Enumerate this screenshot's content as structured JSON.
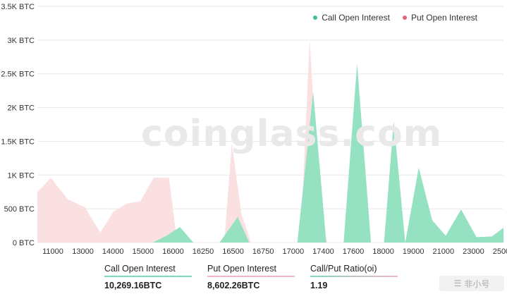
{
  "chart_data": {
    "type": "area",
    "watermark": "coinglass.com",
    "y_ticks": [
      "0 BTC",
      "500 BTC",
      "1K BTC",
      "1.5K BTC",
      "2K BTC",
      "2.5K BTC",
      "3K BTC",
      "3.5K BTC"
    ],
    "ylim": [
      0,
      3500
    ],
    "x_ticks": [
      "11000",
      "13000",
      "14000",
      "15000",
      "16000",
      "16250",
      "16500",
      "16750",
      "17000",
      "17400",
      "17600",
      "18000",
      "19000",
      "21000",
      "23000",
      "25000"
    ],
    "legend_position": "top-right",
    "series": [
      {
        "name": "Call Open Interest",
        "color": "#7fdcb5",
        "values": [
          0,
          0,
          0,
          0,
          0,
          0,
          0,
          0,
          0,
          0,
          0,
          0,
          0,
          0,
          0,
          0,
          0,
          0,
          0,
          0,
          0,
          0,
          0,
          0,
          0,
          0,
          0,
          0,
          0,
          0,
          30,
          50,
          0,
          0,
          0,
          0,
          0,
          0,
          0,
          0,
          0,
          0,
          0,
          0,
          0,
          0,
          0,
          0,
          0,
          0,
          0,
          0,
          0,
          0,
          0,
          0,
          0,
          0,
          0,
          0,
          0,
          0,
          0,
          0,
          0,
          0,
          0,
          0,
          0,
          0,
          0,
          0,
          100,
          230,
          0,
          0,
          0,
          0,
          0,
          0,
          0,
          0,
          0,
          0,
          0,
          0,
          0,
          0,
          0,
          0,
          0,
          0,
          0,
          0,
          0,
          380,
          0,
          0,
          0,
          0,
          0,
          0,
          0,
          0,
          0,
          0,
          0,
          0,
          0,
          0,
          0,
          0,
          0,
          0,
          0,
          0,
          0,
          2230,
          0,
          0,
          0,
          0,
          0,
          0,
          0,
          0,
          0,
          0,
          0,
          0,
          0,
          0,
          0,
          0,
          2650,
          0,
          0,
          0,
          0,
          0,
          0,
          0,
          0,
          0,
          0,
          0,
          0,
          0,
          0,
          0,
          1800,
          0,
          0,
          0,
          0,
          0,
          0,
          0,
          0,
          0,
          0,
          0,
          0,
          0,
          0,
          1110,
          0,
          0,
          0,
          0,
          330,
          0,
          0,
          100,
          0,
          0,
          490,
          0,
          0,
          0,
          100,
          80,
          0,
          0,
          220
        ]
      },
      {
        "name": "Put Open Interest",
        "color": "#fbe0e2",
        "values": [
          740,
          960,
          0,
          0,
          0,
          0,
          0,
          0,
          0,
          0,
          0,
          0,
          0,
          0,
          0,
          0,
          0,
          0,
          0,
          0,
          0,
          0,
          0,
          0,
          0,
          0,
          0,
          0,
          0,
          0,
          0,
          0,
          0,
          0,
          0,
          0,
          0,
          0,
          0,
          0,
          0,
          0,
          0,
          0,
          0,
          0,
          0,
          0,
          0,
          0,
          0,
          0,
          0,
          0,
          0,
          0,
          0,
          0,
          0,
          0,
          0,
          0,
          0,
          0,
          0,
          0,
          0,
          0,
          0,
          0,
          0,
          0,
          0,
          0,
          0,
          0,
          0,
          0,
          0,
          0,
          0,
          0,
          0,
          0,
          0,
          0,
          0,
          0,
          0,
          0,
          0,
          0,
          0,
          0,
          0,
          0,
          0,
          0,
          0,
          0,
          0,
          0,
          0,
          0,
          0,
          0,
          0,
          0,
          0,
          0,
          0,
          0,
          0,
          0,
          0,
          0,
          0,
          0,
          0,
          0,
          0,
          0,
          0,
          0,
          0,
          0,
          0,
          0,
          0,
          0,
          0,
          0,
          0,
          0,
          0,
          0,
          0,
          0,
          0,
          0,
          0,
          0,
          0,
          0,
          0,
          0,
          0,
          0,
          0,
          0,
          0,
          0,
          0,
          0,
          0,
          0,
          0,
          0,
          0,
          0,
          0,
          0,
          0,
          0,
          0,
          0,
          0,
          0,
          0,
          0,
          0,
          0,
          0,
          0,
          0,
          0,
          0,
          0,
          0,
          0,
          0,
          0,
          0,
          0,
          0,
          0,
          0,
          0,
          0,
          0,
          0,
          0,
          0,
          0,
          0,
          0,
          0,
          0,
          0,
          0
        ]
      }
    ]
  },
  "legend": {
    "call_label": "Call Open Interest",
    "put_label": "Put  Open Interest",
    "call_color": "#3fc28a",
    "put_color": "#e8607a"
  },
  "stats": [
    {
      "label": "Call Open Interest",
      "value": "10,269.16BTC",
      "color": "#7fdcb5"
    },
    {
      "label": "Put Open Interest",
      "value": "8,602.26BTC",
      "color": "#f4b7bf"
    },
    {
      "label": "Call/Put Ratio(oi)",
      "value": "1.19",
      "color": "gradient"
    }
  ],
  "corner_logo": "非小号"
}
